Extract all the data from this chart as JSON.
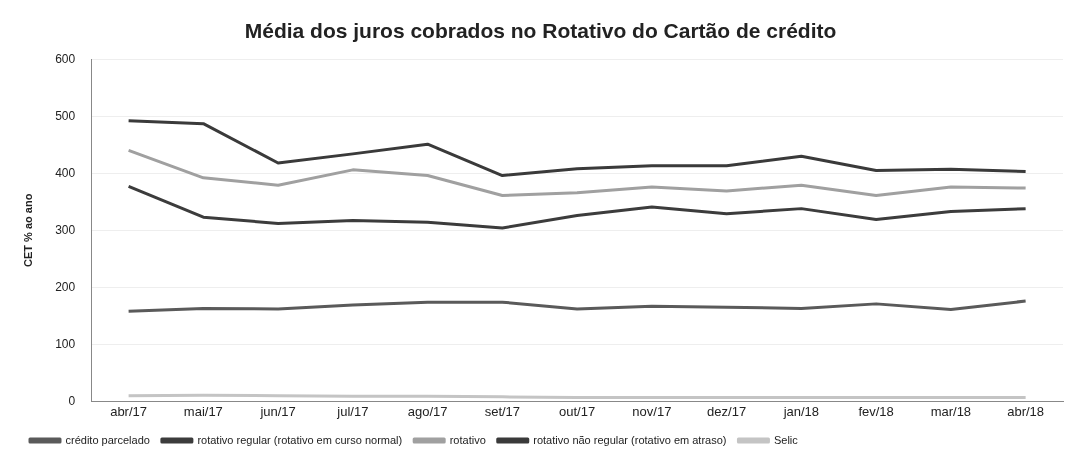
{
  "chart_data": {
    "type": "line",
    "title": "Média dos juros cobrados no Rotativo do Cartão de crédito",
    "ylabel": "CET % ao ano",
    "categories": [
      "abr/17",
      "mai/17",
      "jun/17",
      "jul/17",
      "ago/17",
      "set/17",
      "out/17",
      "nov/17",
      "dez/17",
      "jan/18",
      "fev/18",
      "mar/18",
      "abr/18"
    ],
    "series": [
      {
        "name": "crédito parcelado",
        "color": "#5a5a5a",
        "values": [
          158,
          163,
          162,
          169,
          174,
          174,
          162,
          167,
          165,
          163,
          171,
          161,
          176
        ]
      },
      {
        "name": "rotativo regular (rotativo em curso normal)",
        "color": "#3c3c3c",
        "values": [
          377,
          323,
          312,
          317,
          314,
          304,
          326,
          341,
          329,
          338,
          319,
          333,
          338
        ]
      },
      {
        "name": "rotativo",
        "color": "#a0a0a0",
        "values": [
          440,
          392,
          379,
          406,
          396,
          361,
          366,
          376,
          369,
          379,
          361,
          376,
          374
        ]
      },
      {
        "name": "rotativo não regular (rotativo em atraso)",
        "color": "#3a3a3a",
        "values": [
          492,
          487,
          418,
          434,
          451,
          396,
          408,
          413,
          413,
          430,
          405,
          407,
          403
        ]
      },
      {
        "name": "Selic",
        "color": "#c4c4c4",
        "values": [
          10,
          11,
          10,
          9,
          9,
          8,
          7,
          7,
          7,
          7,
          7,
          7,
          7
        ]
      }
    ],
    "ylim": [
      0,
      600
    ],
    "yticks": [
      0,
      100,
      200,
      300,
      400,
      500,
      600
    ],
    "grid": "y",
    "legend": "bottom",
    "marker": "none",
    "line_style": "solid"
  }
}
